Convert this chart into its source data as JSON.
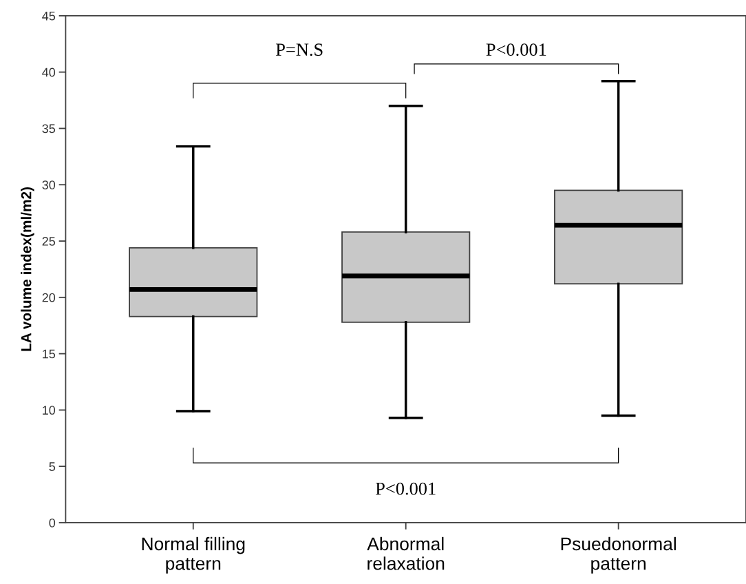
{
  "chart_data": {
    "type": "box",
    "ylabel": "LA volume index(ml/m2)",
    "categories": [
      "Normal filling\npattern",
      "Abnormal\nrelaxation",
      "Psuedonormal\npattern"
    ],
    "boxes": [
      {
        "low": 9.9,
        "q1": 18.3,
        "median": 20.7,
        "q3": 24.4,
        "high": 33.4
      },
      {
        "low": 9.3,
        "q1": 17.8,
        "median": 21.9,
        "q3": 25.8,
        "high": 37.0
      },
      {
        "low": 9.5,
        "q1": 21.2,
        "median": 26.4,
        "q3": 29.5,
        "high": 39.2
      }
    ],
    "color": "#c8c8c8",
    "ylim": [
      0,
      45
    ],
    "yticks": [
      0,
      5,
      10,
      15,
      20,
      25,
      30,
      35,
      40,
      45
    ],
    "grid": false,
    "annotations": [
      "P=N.S",
      "P<0.001",
      "P<0.001"
    ]
  }
}
